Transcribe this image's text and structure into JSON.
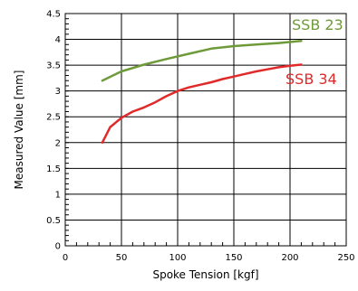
{
  "chart_data": {
    "type": "line",
    "xlabel": "Spoke Tension [kgf]",
    "ylabel": "Measured Value [mm]",
    "xlim": [
      0,
      250
    ],
    "ylim": [
      0,
      4.5
    ],
    "x_ticks": [
      0,
      50,
      100,
      150,
      200,
      250
    ],
    "y_ticks": [
      0,
      0.5,
      1,
      1.5,
      2,
      2.5,
      3,
      3.5,
      4,
      4.5
    ],
    "x_tick_labels": [
      "0",
      "50",
      "100",
      "150",
      "200",
      "250"
    ],
    "y_tick_labels": [
      "0",
      "0.5",
      "1",
      "1.5",
      "2",
      "2.5",
      "3",
      "3.5",
      "4",
      "4.5"
    ],
    "grid": true,
    "series": [
      {
        "name": "SSB 23",
        "color": "#6f9a3a",
        "x": [
          33,
          50,
          70,
          90,
          110,
          130,
          150,
          170,
          190,
          210
        ],
        "y": [
          3.2,
          3.38,
          3.51,
          3.62,
          3.72,
          3.82,
          3.87,
          3.9,
          3.93,
          3.97
        ]
      },
      {
        "name": "SSB 34",
        "color": "#e02a2a",
        "x": [
          33,
          40,
          50,
          60,
          70,
          80,
          90,
          100,
          110,
          120,
          130,
          140,
          150,
          160,
          170,
          180,
          190,
          200,
          210
        ],
        "y": [
          2.0,
          2.3,
          2.48,
          2.6,
          2.68,
          2.78,
          2.9,
          3.0,
          3.07,
          3.12,
          3.17,
          3.23,
          3.28,
          3.33,
          3.38,
          3.42,
          3.46,
          3.49,
          3.51
        ]
      }
    ]
  }
}
